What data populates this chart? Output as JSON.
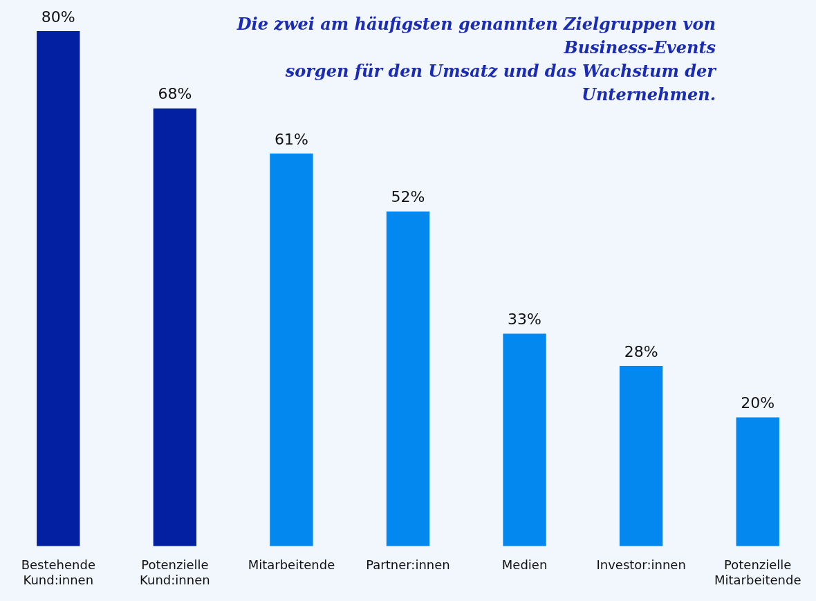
{
  "chart_data": {
    "type": "bar",
    "annotations": [
      "Die zwei am häufigsten genannten Zielgruppen von Business-Events\nsorgen für den Umsatz und das Wachstum der Unternehmen."
    ],
    "categories": [
      "Bestehende Kund:innen",
      "Potenzielle Kund:innen",
      "Mitarbeitende",
      "Partner:innen",
      "Medien",
      "Investor:innen",
      "Potenzielle Mitarbeitende"
    ],
    "values": [
      80,
      68,
      61,
      52,
      33,
      28,
      20
    ],
    "value_labels": [
      "80%",
      "68%",
      "61%",
      "52%",
      "33%",
      "28%",
      "20%"
    ],
    "colors": [
      "#0320a3",
      "#0320a3",
      "#0388ef",
      "#0388ef",
      "#0388ef",
      "#0388ef",
      "#0388ef"
    ],
    "tick_labels": "x",
    "grid": false,
    "legend": false
  }
}
